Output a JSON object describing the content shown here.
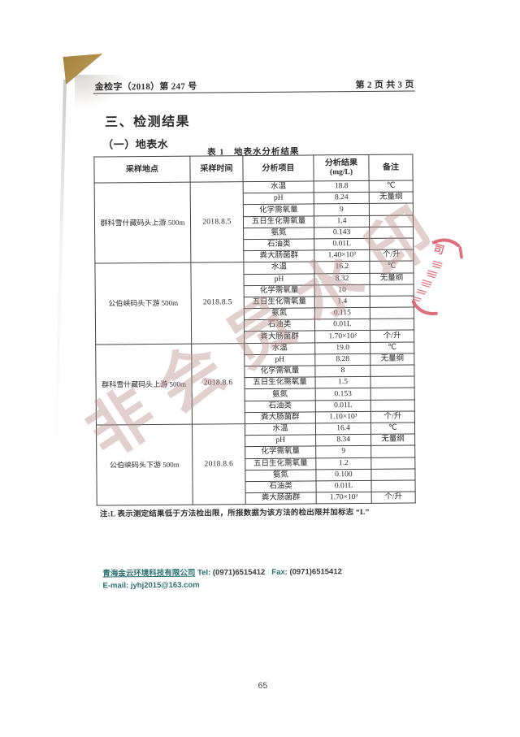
{
  "header": {
    "doc_no": "金检字（2018）第 247 号",
    "page_info": "第 2 页 共 3 页"
  },
  "section_title": "三、检测结果",
  "subsection_title": "（一）地表水",
  "table": {
    "caption": "表 1　地表水分析结果",
    "columns": [
      {
        "label": "采样地点"
      },
      {
        "label": "采样时间"
      },
      {
        "label": "分析项目"
      },
      {
        "label": "分析结果",
        "sub": "(mg/L)"
      },
      {
        "label": "备注"
      }
    ],
    "groups": [
      {
        "location": "群科雪什藏码头上游 500m",
        "date": "2018.8.5",
        "rows": [
          [
            "水温",
            "18.8",
            "℃"
          ],
          [
            "pH",
            "8.24",
            "无量纲"
          ],
          [
            "化学需氧量",
            "9",
            ""
          ],
          [
            "五日生化需氧量",
            "1.4",
            ""
          ],
          [
            "氨氮",
            "0.143",
            ""
          ],
          [
            "石油类",
            "0.01L",
            ""
          ],
          [
            "粪大肠菌群",
            "1.40×10³",
            "个/升"
          ]
        ]
      },
      {
        "location": "公伯峡码头下游 500m",
        "date": "2018.8.5",
        "rows": [
          [
            "水温",
            "16.2",
            "℃"
          ],
          [
            "pH",
            "8.32",
            "无量纲"
          ],
          [
            "化学需氧量",
            "10",
            ""
          ],
          [
            "五日生化需氧量",
            "1.4",
            ""
          ],
          [
            "氨氮",
            "0.115",
            ""
          ],
          [
            "石油类",
            "0.01L",
            ""
          ],
          [
            "粪大肠菌群",
            "1.70×10³",
            "个/升"
          ]
        ]
      },
      {
        "location": "群科雪什藏码头上游 500m",
        "date": "2018.8.6",
        "rows": [
          [
            "水温",
            "19.0",
            "℃"
          ],
          [
            "pH",
            "8.28",
            "无量纲"
          ],
          [
            "化学需氧量",
            "8",
            ""
          ],
          [
            "五日生化需氧量",
            "1.5",
            ""
          ],
          [
            "氨氮",
            "0.153",
            ""
          ],
          [
            "石油类",
            "0.01L",
            ""
          ],
          [
            "粪大肠菌群",
            "1.10×10³",
            "个/升"
          ]
        ]
      },
      {
        "location": "公伯峡码头下游 500m",
        "date": "2018.8.6",
        "rows": [
          [
            "水温",
            "16.4",
            "℃"
          ],
          [
            "pH",
            "8.34",
            "无量纲"
          ],
          [
            "化学需氧量",
            "9",
            ""
          ],
          [
            "五日生化需氧量",
            "1.2",
            ""
          ],
          [
            "氨氮",
            "0.100",
            ""
          ],
          [
            "石油类",
            "0.01L",
            ""
          ],
          [
            "粪大肠菌群",
            "1.70×10³",
            "个/升"
          ]
        ]
      }
    ]
  },
  "note": "注:L 表示测定结果低于方法检出限，所报数据为该方法的检出限并加标志 “L”",
  "footer": {
    "company": "青海金云环境科技有限公司",
    "tel_label": "Tel:",
    "tel": "(0971)6515412",
    "fax_label": "Fax:",
    "fax": "(0971)6515412",
    "email_label": "E-mail:",
    "email": "jyhj2015@163.com"
  },
  "page_number": "65",
  "watermark": {
    "text": "非会员水印"
  },
  "stamp": {
    "visible_char": "司"
  },
  "colors": {
    "stamp": "#d95565",
    "watermark": "#bb9191",
    "footer-accent": "#2a6f72",
    "fold": "#a3813c"
  }
}
